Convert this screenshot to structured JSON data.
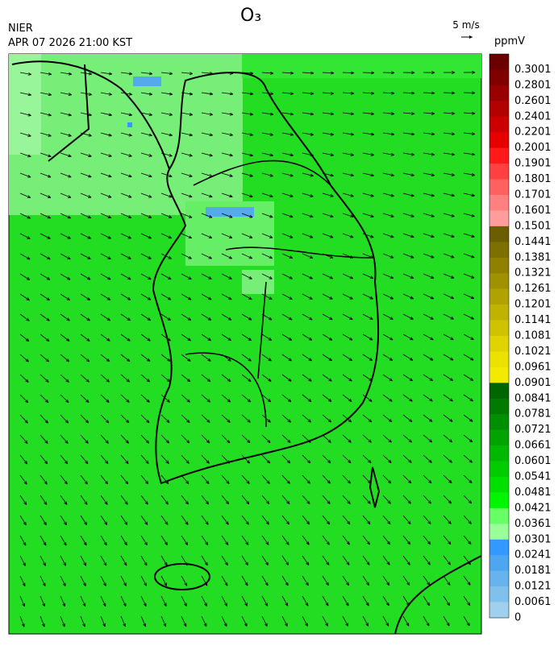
{
  "header": {
    "title": "O₃",
    "agency": "NIER",
    "datetime": "APR 07 2026 21:00 KST",
    "wind_scale": "5 m/s"
  },
  "colorbar": {
    "unit": "ppmV",
    "labels": [
      "0.3001",
      "0.2801",
      "0.2601",
      "0.2401",
      "0.2201",
      "0.2001",
      "0.1901",
      "0.1801",
      "0.1701",
      "0.1601",
      "0.1501",
      "0.1441",
      "0.1381",
      "0.1321",
      "0.1261",
      "0.1201",
      "0.1141",
      "0.1081",
      "0.1021",
      "0.0961",
      "0.0901",
      "0.0841",
      "0.0781",
      "0.0721",
      "0.0661",
      "0.0601",
      "0.0541",
      "0.0481",
      "0.0421",
      "0.0361",
      "0.0301",
      "0.0241",
      "0.0181",
      "0.0121",
      "0.0061",
      "0"
    ],
    "colors": [
      "#6b0000",
      "#800000",
      "#990000",
      "#b30000",
      "#cc0000",
      "#e60000",
      "#ff1a1a",
      "#ff4040",
      "#ff6060",
      "#ff8080",
      "#ff9c9c",
      "#6b5e00",
      "#7d6f00",
      "#8f8000",
      "#a09100",
      "#b0a200",
      "#c0b300",
      "#cfc300",
      "#dfd400",
      "#ece200",
      "#f2ea00",
      "#006600",
      "#007a00",
      "#008f00",
      "#00a300",
      "#00b800",
      "#00cc00",
      "#00e000",
      "#00f500",
      "#66ff66",
      "#99ff99",
      "#3399ff",
      "#4da6f0",
      "#66b3ee",
      "#80c0ec",
      "#a0d0ee"
    ]
  }
}
